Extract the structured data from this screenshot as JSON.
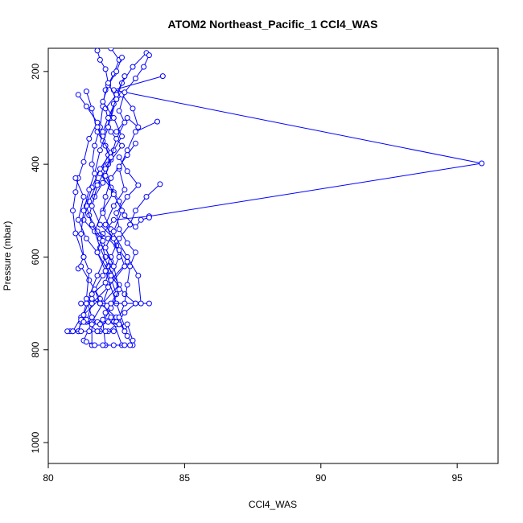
{
  "chart_data": {
    "type": "line",
    "title": "ATOM2 Northeast_Pacific_1 CCl4_WAS",
    "xlabel": "CCl4_WAS",
    "ylabel": "Pressure (mbar)",
    "xlim": [
      80,
      96.5
    ],
    "ylim": [
      1045,
      150
    ],
    "y_reversed": true,
    "grid": false,
    "color": "#0000ff",
    "marker": "open-circle",
    "x_ticks": [
      80,
      85,
      90,
      95
    ],
    "y_ticks": [
      200,
      400,
      600,
      800,
      1000
    ],
    "series": [
      {
        "points": [
          [
            82.3,
            150
          ],
          [
            82.6,
            175
          ],
          [
            82.4,
            205
          ],
          [
            82.1,
            240
          ],
          [
            82.0,
            275
          ],
          [
            81.9,
            320
          ],
          [
            81.7,
            360
          ],
          [
            81.6,
            400
          ],
          [
            81.8,
            440
          ],
          [
            81.5,
            480
          ],
          [
            81.3,
            520
          ],
          [
            81.9,
            560
          ],
          [
            82.1,
            600
          ],
          [
            81.8,
            640
          ],
          [
            81.4,
            700
          ],
          [
            81.2,
            740
          ],
          [
            81.1,
            760
          ]
        ]
      },
      {
        "points": [
          [
            83.6,
            160
          ],
          [
            83.1,
            190
          ],
          [
            82.7,
            225
          ],
          [
            82.5,
            260
          ],
          [
            82.3,
            300
          ],
          [
            82.0,
            340
          ],
          [
            82.2,
            380
          ],
          [
            81.9,
            420
          ],
          [
            82.4,
            460
          ],
          [
            82.0,
            500
          ],
          [
            81.7,
            545
          ],
          [
            81.9,
            580
          ],
          [
            82.2,
            620
          ],
          [
            82.6,
            660
          ],
          [
            82.0,
            700
          ],
          [
            81.6,
            740
          ],
          [
            81.3,
            780
          ]
        ]
      },
      {
        "points": [
          [
            84.2,
            210
          ],
          [
            82.4,
            240
          ],
          [
            95.9,
            398
          ],
          [
            83.7,
            512
          ],
          [
            82.4,
            520
          ],
          [
            82.0,
            550
          ],
          [
            81.8,
            590
          ],
          [
            82.2,
            630
          ],
          [
            82.5,
            680
          ],
          [
            82.1,
            720
          ],
          [
            81.9,
            760
          ]
        ]
      },
      {
        "points": [
          [
            81.1,
            250
          ],
          [
            81.4,
            275
          ],
          [
            81.8,
            310
          ],
          [
            81.5,
            345
          ],
          [
            81.3,
            395
          ],
          [
            81.1,
            430
          ],
          [
            81.0,
            460
          ],
          [
            80.9,
            500
          ],
          [
            81.0,
            549
          ],
          [
            81.3,
            600
          ],
          [
            81.1,
            625
          ],
          [
            81.2,
            620
          ],
          [
            81.5,
            650
          ],
          [
            81.9,
            690
          ],
          [
            81.2,
            730
          ],
          [
            80.9,
            760
          ]
        ]
      },
      {
        "points": [
          [
            84.0,
            308
          ],
          [
            83.2,
            330
          ],
          [
            82.9,
            370
          ],
          [
            82.6,
            410
          ],
          [
            82.8,
            455
          ],
          [
            82.4,
            490
          ],
          [
            82.1,
            530
          ],
          [
            82.5,
            575
          ],
          [
            82.9,
            610
          ],
          [
            82.3,
            650
          ],
          [
            82.0,
            700
          ],
          [
            82.4,
            740
          ],
          [
            82.7,
            790
          ]
        ]
      },
      {
        "points": [
          [
            84.1,
            443
          ],
          [
            83.6,
            470
          ],
          [
            83.2,
            500
          ],
          [
            83.0,
            530
          ],
          [
            82.6,
            560
          ],
          [
            82.3,
            600
          ],
          [
            82.0,
            640
          ],
          [
            81.7,
            670
          ],
          [
            81.9,
            700
          ],
          [
            82.5,
            730
          ],
          [
            82.9,
            770
          ],
          [
            83.1,
            790
          ]
        ]
      },
      {
        "points": [
          [
            81.4,
            243
          ],
          [
            81.6,
            280
          ],
          [
            81.8,
            330
          ],
          [
            82.1,
            360
          ],
          [
            82.3,
            390
          ],
          [
            82.0,
            440
          ],
          [
            81.7,
            470
          ],
          [
            81.5,
            510
          ],
          [
            81.8,
            545
          ],
          [
            82.2,
            560
          ],
          [
            82.6,
            585
          ],
          [
            82.8,
            620
          ],
          [
            82.2,
            665
          ],
          [
            81.6,
            700
          ],
          [
            81.4,
            740
          ],
          [
            81.8,
            760
          ]
        ]
      },
      {
        "points": [
          [
            82.8,
            210
          ],
          [
            82.5,
            250
          ],
          [
            82.1,
            280
          ],
          [
            82.3,
            330
          ],
          [
            82.7,
            360
          ],
          [
            82.2,
            400
          ],
          [
            81.8,
            445
          ],
          [
            81.6,
            490
          ],
          [
            81.9,
            530
          ],
          [
            82.4,
            560
          ],
          [
            82.6,
            600
          ],
          [
            82.3,
            640
          ],
          [
            82.8,
            680
          ],
          [
            83.2,
            700
          ],
          [
            82.8,
            720
          ],
          [
            82.5,
            745
          ],
          [
            82.2,
            760
          ]
        ]
      },
      {
        "points": [
          [
            83.2,
            355
          ],
          [
            82.9,
            380
          ],
          [
            82.6,
            405
          ],
          [
            82.3,
            430
          ],
          [
            82.1,
            470
          ],
          [
            82.0,
            505
          ],
          [
            82.3,
            540
          ],
          [
            82.9,
            600
          ],
          [
            83.3,
            640
          ],
          [
            83.4,
            700
          ],
          [
            83.7,
            700
          ]
        ]
      },
      {
        "points": [
          [
            81.8,
            320
          ],
          [
            82.0,
            350
          ],
          [
            82.3,
            375
          ],
          [
            81.9,
            410
          ],
          [
            81.6,
            450
          ],
          [
            81.4,
            490
          ],
          [
            81.6,
            530
          ],
          [
            82.0,
            565
          ],
          [
            82.3,
            610
          ],
          [
            82.1,
            655
          ],
          [
            81.6,
            680
          ],
          [
            81.3,
            725
          ],
          [
            81.1,
            760
          ],
          [
            80.8,
            760
          ],
          [
            80.7,
            760
          ]
        ]
      },
      {
        "points": [
          [
            82.7,
            170
          ],
          [
            82.5,
            200
          ],
          [
            82.2,
            230
          ],
          [
            82.0,
            265
          ],
          [
            82.4,
            300
          ],
          [
            82.7,
            340
          ],
          [
            82.4,
            370
          ],
          [
            82.1,
            410
          ],
          [
            82.3,
            450
          ],
          [
            82.6,
            480
          ],
          [
            82.8,
            510
          ],
          [
            83.2,
            535
          ],
          [
            83.4,
            520
          ],
          [
            83.7,
            515
          ]
        ]
      },
      {
        "points": [
          [
            82.5,
            330
          ],
          [
            82.9,
            300
          ],
          [
            83.3,
            320
          ],
          [
            83.1,
            280
          ],
          [
            82.7,
            250
          ],
          [
            82.4,
            270
          ],
          [
            82.2,
            320
          ],
          [
            81.9,
            370
          ],
          [
            81.7,
            420
          ],
          [
            81.5,
            455
          ],
          [
            81.3,
            500
          ],
          [
            81.2,
            550
          ],
          [
            81.3,
            600
          ],
          [
            81.5,
            630
          ],
          [
            81.4,
            690
          ],
          [
            81.6,
            730
          ],
          [
            81.6,
            790
          ]
        ]
      },
      {
        "points": [
          [
            83.7,
            165
          ],
          [
            83.5,
            190
          ],
          [
            83.2,
            215
          ],
          [
            82.8,
            245
          ],
          [
            82.6,
            285
          ],
          [
            82.8,
            310
          ],
          [
            82.5,
            345
          ],
          [
            82.3,
            385
          ],
          [
            82.1,
            425
          ],
          [
            82.4,
            465
          ],
          [
            82.7,
            500
          ],
          [
            82.4,
            545
          ],
          [
            82.1,
            580
          ],
          [
            82.4,
            620
          ],
          [
            82.6,
            670
          ],
          [
            82.3,
            710
          ],
          [
            82.0,
            740
          ],
          [
            82.1,
            790
          ]
        ]
      },
      {
        "points": [
          [
            82.0,
            330
          ],
          [
            82.2,
            300
          ],
          [
            82.5,
            260
          ],
          [
            82.2,
            225
          ],
          [
            82.1,
            195
          ],
          [
            81.9,
            175
          ],
          [
            81.8,
            155
          ]
        ]
      },
      {
        "points": [
          [
            81.0,
            430
          ],
          [
            81.3,
            470
          ],
          [
            81.1,
            520
          ],
          [
            81.4,
            560
          ],
          [
            81.8,
            590
          ],
          [
            82.1,
            630
          ],
          [
            82.5,
            700
          ],
          [
            82.8,
            750
          ],
          [
            82.9,
            745
          ],
          [
            83.1,
            780
          ]
        ]
      },
      {
        "points": [
          [
            82.6,
            385
          ],
          [
            82.9,
            415
          ],
          [
            83.3,
            445
          ],
          [
            82.9,
            470
          ],
          [
            82.5,
            505
          ],
          [
            82.6,
            540
          ],
          [
            82.9,
            570
          ],
          [
            83.2,
            590
          ],
          [
            83.0,
            620
          ],
          [
            82.9,
            660
          ],
          [
            82.8,
            700
          ],
          [
            82.6,
            730
          ],
          [
            82.8,
            760
          ]
        ]
      },
      {
        "points": [
          [
            81.2,
            700
          ],
          [
            81.4,
            700
          ],
          [
            81.6,
            690
          ],
          [
            81.9,
            700
          ],
          [
            82.3,
            700
          ],
          [
            82.8,
            700
          ],
          [
            83.2,
            700
          ]
        ]
      },
      {
        "points": [
          [
            81.2,
            735
          ],
          [
            81.4,
            735
          ],
          [
            81.6,
            730
          ],
          [
            81.8,
            740
          ],
          [
            82.0,
            735
          ],
          [
            82.3,
            730
          ],
          [
            82.5,
            740
          ]
        ]
      },
      {
        "points": [
          [
            80.9,
            760
          ],
          [
            81.2,
            760
          ],
          [
            81.5,
            760
          ],
          [
            81.8,
            760
          ],
          [
            82.1,
            760
          ],
          [
            82.4,
            760
          ]
        ]
      },
      {
        "points": [
          [
            81.3,
            740
          ],
          [
            81.6,
            745
          ],
          [
            81.9,
            745
          ],
          [
            82.2,
            740
          ],
          [
            82.6,
            745
          ]
        ]
      },
      {
        "points": [
          [
            81.4,
            783
          ],
          [
            81.7,
            790
          ],
          [
            82.0,
            790
          ],
          [
            82.4,
            790
          ],
          [
            82.8,
            790
          ],
          [
            83.0,
            790
          ]
        ]
      }
    ]
  }
}
